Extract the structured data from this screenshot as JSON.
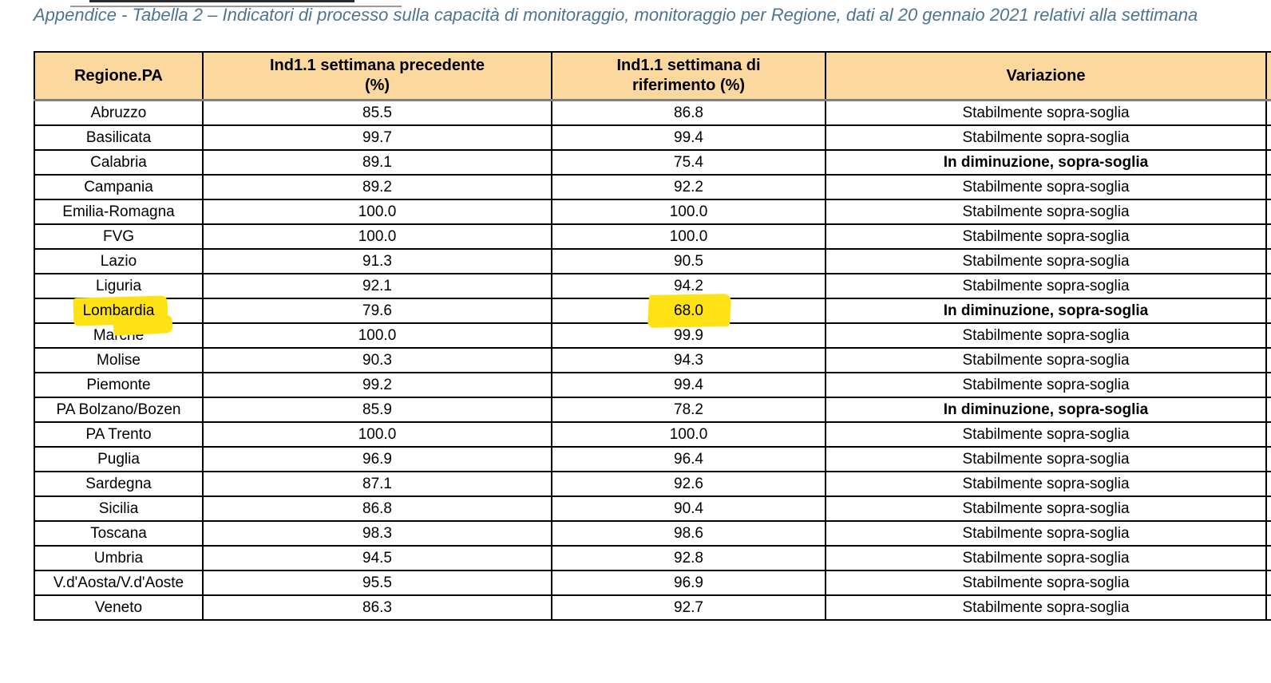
{
  "page": {
    "title": "Appendice - Tabella 2 – Indicatori di processo sulla capacità di monitoraggio, monitoraggio per Regione, dati al 20 gennaio 2021 relativi alla settimana"
  },
  "colors": {
    "header_bg": "#FBD89E",
    "title_text": "#4E7491",
    "highlight_yellow": "#FFE215",
    "table_border": "#000000",
    "header_divider": "#808080"
  },
  "table": {
    "headers": [
      "Regione.PA",
      "Ind1.1 settimana precedente\n(%)",
      "Ind1.1 settimana di\nriferimento (%)",
      "Variazione"
    ],
    "rows": [
      {
        "region": "Abruzzo",
        "prev": "85.5",
        "ref": "86.8",
        "variazione": "Stabilmente sopra-soglia",
        "bold": false,
        "highlight": false
      },
      {
        "region": "Basilicata",
        "prev": "99.7",
        "ref": "99.4",
        "variazione": "Stabilmente sopra-soglia",
        "bold": false,
        "highlight": false
      },
      {
        "region": "Calabria",
        "prev": "89.1",
        "ref": "75.4",
        "variazione": "In diminuzione, sopra-soglia",
        "bold": true,
        "highlight": false
      },
      {
        "region": "Campania",
        "prev": "89.2",
        "ref": "92.2",
        "variazione": "Stabilmente sopra-soglia",
        "bold": false,
        "highlight": false
      },
      {
        "region": "Emilia-Romagna",
        "prev": "100.0",
        "ref": "100.0",
        "variazione": "Stabilmente sopra-soglia",
        "bold": false,
        "highlight": false
      },
      {
        "region": "FVG",
        "prev": "100.0",
        "ref": "100.0",
        "variazione": "Stabilmente sopra-soglia",
        "bold": false,
        "highlight": false
      },
      {
        "region": "Lazio",
        "prev": "91.3",
        "ref": "90.5",
        "variazione": "Stabilmente sopra-soglia",
        "bold": false,
        "highlight": false
      },
      {
        "region": "Liguria",
        "prev": "92.1",
        "ref": "94.2",
        "variazione": "Stabilmente sopra-soglia",
        "bold": false,
        "highlight": false
      },
      {
        "region": "Lombardia",
        "prev": "79.6",
        "ref": "68.0",
        "variazione": "In diminuzione, sopra-soglia",
        "bold": true,
        "highlight": true
      },
      {
        "region": "Marche",
        "prev": "100.0",
        "ref": "99.9",
        "variazione": "Stabilmente sopra-soglia",
        "bold": false,
        "highlight": false
      },
      {
        "region": "Molise",
        "prev": "90.3",
        "ref": "94.3",
        "variazione": "Stabilmente sopra-soglia",
        "bold": false,
        "highlight": false
      },
      {
        "region": "Piemonte",
        "prev": "99.2",
        "ref": "99.4",
        "variazione": "Stabilmente sopra-soglia",
        "bold": false,
        "highlight": false
      },
      {
        "region": "PA Bolzano/Bozen",
        "prev": "85.9",
        "ref": "78.2",
        "variazione": "In diminuzione, sopra-soglia",
        "bold": true,
        "highlight": false
      },
      {
        "region": "PA Trento",
        "prev": "100.0",
        "ref": "100.0",
        "variazione": "Stabilmente sopra-soglia",
        "bold": false,
        "highlight": false
      },
      {
        "region": "Puglia",
        "prev": "96.9",
        "ref": "96.4",
        "variazione": "Stabilmente sopra-soglia",
        "bold": false,
        "highlight": false
      },
      {
        "region": "Sardegna",
        "prev": "87.1",
        "ref": "92.6",
        "variazione": "Stabilmente sopra-soglia",
        "bold": false,
        "highlight": false
      },
      {
        "region": "Sicilia",
        "prev": "86.8",
        "ref": "90.4",
        "variazione": "Stabilmente sopra-soglia",
        "bold": false,
        "highlight": false
      },
      {
        "region": "Toscana",
        "prev": "98.3",
        "ref": "98.6",
        "variazione": "Stabilmente sopra-soglia",
        "bold": false,
        "highlight": false
      },
      {
        "region": "Umbria",
        "prev": "94.5",
        "ref": "92.8",
        "variazione": "Stabilmente sopra-soglia",
        "bold": false,
        "highlight": false
      },
      {
        "region": "V.d'Aosta/V.d'Aoste",
        "prev": "95.5",
        "ref": "96.9",
        "variazione": "Stabilmente sopra-soglia",
        "bold": false,
        "highlight": false
      },
      {
        "region": "Veneto",
        "prev": "86.3",
        "ref": "92.7",
        "variazione": "Stabilmente sopra-soglia",
        "bold": false,
        "highlight": false
      }
    ]
  }
}
